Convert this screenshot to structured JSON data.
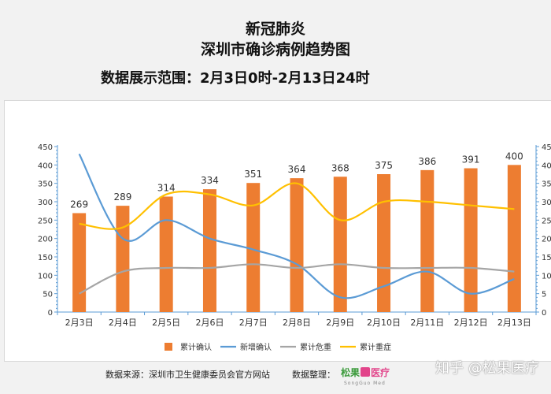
{
  "header": {
    "title_line1": "新冠肺炎",
    "title_line2": "深圳市确诊病例趋势图",
    "range": "数据展示范围：2月3日0时-2月13日24时"
  },
  "footer": {
    "source": "数据来源：深圳市卫生健康委员会官方网站",
    "organizer_label": "数据整理：",
    "logo_part1": "松果",
    "logo_part2": "医疗",
    "logo_sub": "SongGuo Med"
  },
  "watermark": "知乎 @松果医疗",
  "chart_data": {
    "type": "bar",
    "categories": [
      "2月3日",
      "2月4日",
      "2月5日",
      "2月6日",
      "2月7日",
      "2月8日",
      "2月9日",
      "2月10日",
      "2月11日",
      "2月12日",
      "2月13日"
    ],
    "series": [
      {
        "name": "累计确认",
        "type": "bar",
        "axis": "left",
        "values": [
          269,
          289,
          314,
          334,
          351,
          364,
          368,
          375,
          386,
          391,
          400
        ],
        "color": "#ed7d31"
      },
      {
        "name": "新增确认",
        "type": "line",
        "axis": "right",
        "values": [
          43,
          20,
          25,
          20,
          17,
          13,
          4,
          7,
          11,
          5,
          9
        ],
        "color": "#5b9bd5"
      },
      {
        "name": "累计危重",
        "type": "line",
        "axis": "right",
        "values": [
          5,
          11,
          12,
          12,
          13,
          12,
          13,
          12,
          12,
          12,
          11
        ],
        "color": "#a5a5a5"
      },
      {
        "name": "累计重症",
        "type": "line",
        "axis": "right",
        "values": [
          24,
          23,
          32,
          32,
          29,
          35,
          25,
          30,
          30,
          29,
          28
        ],
        "color": "#ffc000"
      }
    ],
    "ylim_left": [
      0,
      450
    ],
    "yticks_left": [
      0,
      50,
      100,
      150,
      200,
      250,
      300,
      350,
      400,
      450
    ],
    "ylim_right": [
      0,
      45
    ],
    "yticks_right": [
      0,
      5,
      10,
      15,
      20,
      25,
      30,
      35,
      40,
      45
    ],
    "data_labels": [
      269,
      289,
      314,
      334,
      351,
      364,
      368,
      375,
      386,
      391,
      400
    ],
    "legend_position": "bottom",
    "grid": false
  }
}
